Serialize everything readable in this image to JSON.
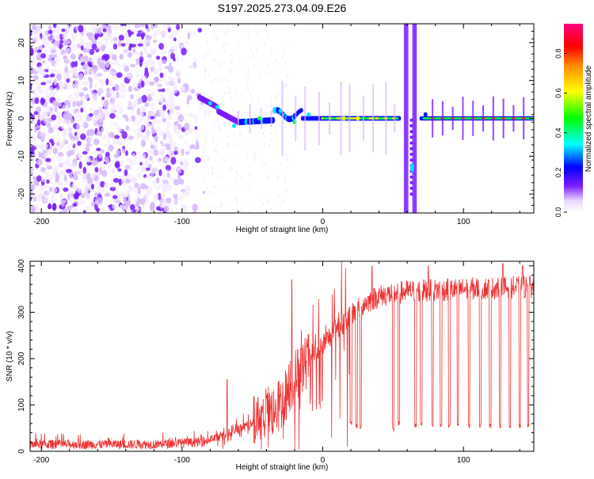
{
  "title": "S197.2025.273.04.09.E26",
  "colors": {
    "axis": "#000000",
    "snr_line": "#ee3333",
    "background": "#ffffff"
  },
  "chart_data": [
    {
      "type": "heatmap",
      "xlabel": "Height of straight line (km)",
      "ylabel": "Frequency (Hz)",
      "xlim": [
        -208,
        150
      ],
      "ylim": [
        -25,
        25
      ],
      "x_ticks": [
        -200,
        -100,
        0,
        100
      ],
      "y_ticks": [
        -20,
        -10,
        0,
        10,
        20
      ],
      "colorbar": {
        "label": "Normalized spectral amplitude",
        "range": [
          0,
          0.95
        ],
        "ticks": [
          "0.0",
          "0.2",
          "0.4",
          "0.6",
          "0.8"
        ],
        "colormap": "rainbow (white-purple-blue-cyan-green-yellow-red-magenta)"
      },
      "features": [
        {
          "x_range": [
            -208,
            -85
          ],
          "description": "diffuse noise over full frequency range"
        },
        {
          "x_range": [
            -85,
            55
          ],
          "frequency_hz": 0,
          "description": "narrow band near 0 Hz, strengthening with height"
        },
        {
          "x_range": [
            58,
            68
          ],
          "description": "vertical broadband streaks with dip to about -14 Hz"
        },
        {
          "x_range": [
            70,
            150
          ],
          "frequency_hz": 0,
          "description": "strong narrow band at 0 Hz"
        }
      ]
    },
    {
      "type": "line",
      "xlabel": "Height of straight line (km)",
      "ylabel": "SNR (10 * v/v)",
      "xlim": [
        -208,
        150
      ],
      "ylim": [
        0,
        410
      ],
      "x_ticks": [
        -200,
        -100,
        0,
        100
      ],
      "y_ticks": [
        0,
        100,
        200,
        300,
        400
      ],
      "envelope": [
        {
          "x": -208,
          "y": 15
        },
        {
          "x": -120,
          "y": 15
        },
        {
          "x": -85,
          "y": 20
        },
        {
          "x": -70,
          "y": 35
        },
        {
          "x": -50,
          "y": 60
        },
        {
          "x": -30,
          "y": 100
        },
        {
          "x": -20,
          "y": 160
        },
        {
          "x": -10,
          "y": 200
        },
        {
          "x": 0,
          "y": 230
        },
        {
          "x": 10,
          "y": 265
        },
        {
          "x": 20,
          "y": 295
        },
        {
          "x": 30,
          "y": 320
        },
        {
          "x": 40,
          "y": 335
        },
        {
          "x": 60,
          "y": 345
        },
        {
          "x": 100,
          "y": 350
        },
        {
          "x": 150,
          "y": 355
        }
      ],
      "spikes": [
        {
          "x": -22,
          "y": 370
        },
        {
          "x": -68,
          "y": 155
        },
        {
          "x": 35,
          "y": 400
        },
        {
          "x": 75,
          "y": 400
        },
        {
          "x": 128,
          "y": 405
        },
        {
          "x": 142,
          "y": 400
        }
      ],
      "dropouts": [
        {
          "x": 20,
          "y": 60
        },
        {
          "x": 24,
          "y": 55
        },
        {
          "x": 27,
          "y": 50
        },
        {
          "x": 50,
          "y": 45
        },
        {
          "x": 54,
          "y": 60
        },
        {
          "x": 66,
          "y": 55
        },
        {
          "x": 70,
          "y": 60
        },
        {
          "x": 78,
          "y": 55
        },
        {
          "x": 84,
          "y": 55
        },
        {
          "x": 90,
          "y": 55
        },
        {
          "x": 96,
          "y": 55
        },
        {
          "x": 104,
          "y": 55
        },
        {
          "x": 112,
          "y": 55
        },
        {
          "x": 119,
          "y": 55
        },
        {
          "x": 126,
          "y": 55
        },
        {
          "x": 133,
          "y": 55
        },
        {
          "x": 140,
          "y": 55
        },
        {
          "x": 146,
          "y": 55
        }
      ]
    }
  ]
}
